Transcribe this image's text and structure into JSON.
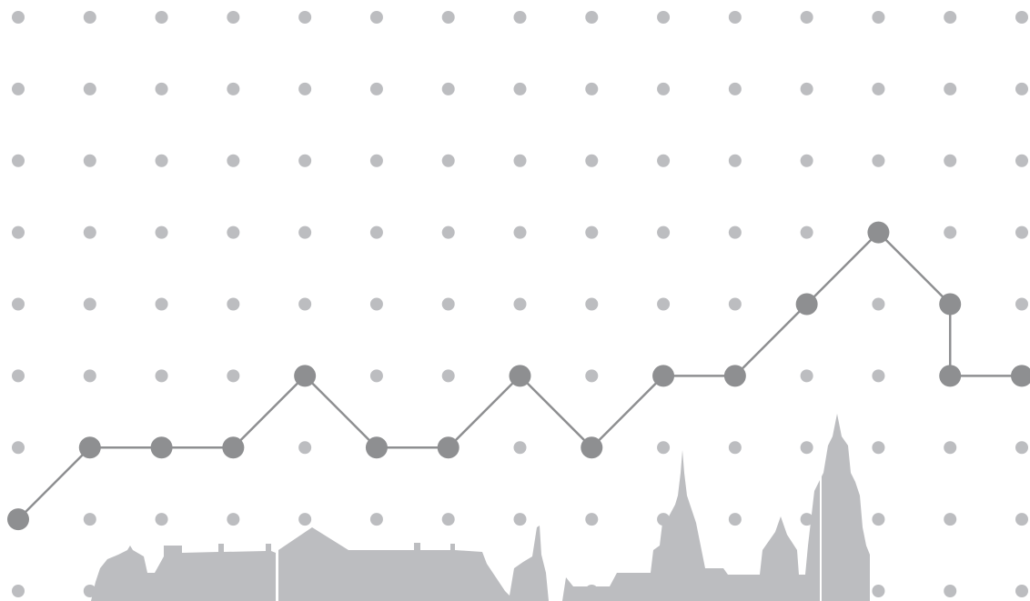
{
  "chart_data": {
    "type": "line",
    "x": [
      0,
      1,
      2,
      3,
      4,
      5,
      6,
      7,
      8,
      9,
      10,
      11,
      12,
      13,
      13,
      14
    ],
    "series": [
      {
        "color": "#8e8f91",
        "values": [
          1,
          2,
          2,
          2,
          3,
          2,
          2,
          3,
          2,
          3,
          3,
          4,
          5,
          4,
          3,
          3
        ]
      }
    ],
    "xlim": [
      0,
      14
    ],
    "ylim": [
      0,
      8
    ],
    "grid": true,
    "grid_color": "#bcbdc0"
  }
}
